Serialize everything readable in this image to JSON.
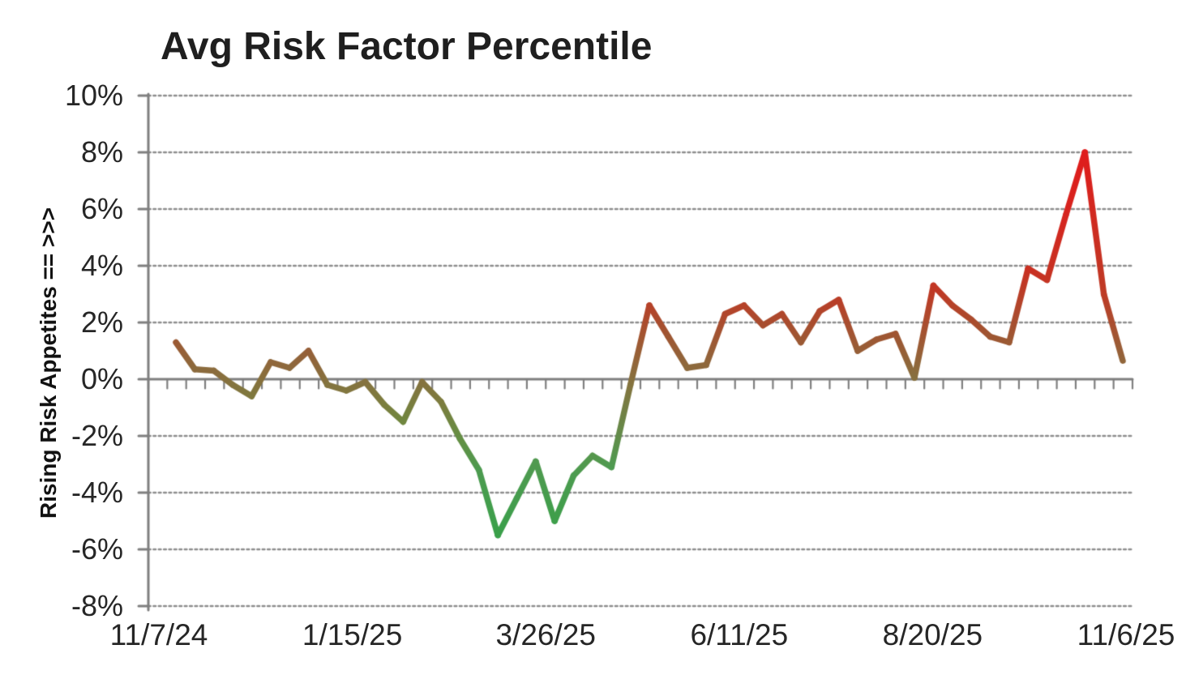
{
  "chart_data": {
    "type": "line",
    "title": "Avg Risk Factor Percentile",
    "y_axis_label": "Rising Risk Appetites == >>>",
    "x_tick_labels": [
      "11/7/24",
      "1/15/25",
      "3/26/25",
      "6/11/25",
      "8/20/25",
      "11/6/25"
    ],
    "y_tick_labels": [
      "10%",
      "8%",
      "6%",
      "4%",
      "2%",
      "0%",
      "-2%",
      "-4%",
      "-6%",
      "-8%"
    ],
    "y_tick_values": [
      10,
      8,
      6,
      4,
      2,
      0,
      -2,
      -4,
      -6,
      -8
    ],
    "ylim": [
      -8,
      10
    ],
    "grid": "horizontal dotted gridlines every 2%, solid gray axis at 0%",
    "legend_position": "none",
    "series": [
      {
        "name": "Avg Risk Factor Percentile",
        "values": [
          1.3,
          0.35,
          0.3,
          -0.2,
          -0.6,
          0.6,
          0.4,
          1.0,
          -0.2,
          -0.4,
          -0.1,
          -0.9,
          -1.5,
          -0.1,
          -0.8,
          -2.1,
          -3.2,
          -5.5,
          -4.2,
          -2.9,
          -5.0,
          -3.4,
          -2.7,
          -3.1,
          -0.2,
          2.6,
          1.5,
          0.4,
          0.5,
          2.3,
          2.6,
          1.9,
          2.3,
          1.3,
          2.4,
          2.8,
          1.0,
          1.4,
          1.6,
          0.05,
          3.3,
          2.6,
          2.1,
          1.5,
          1.3,
          3.9,
          3.5,
          5.8,
          8.0,
          3.0,
          0.65
        ]
      }
    ],
    "line_color_by_value_stops": [
      [
        -5.5,
        "#3aa04a"
      ],
      [
        -3.0,
        "#4f9b51"
      ],
      [
        -1.8,
        "#6b8b40"
      ],
      [
        -0.8,
        "#7d7c3e"
      ],
      [
        0.0,
        "#86713f"
      ],
      [
        0.8,
        "#93633a"
      ],
      [
        1.6,
        "#a05431"
      ],
      [
        2.4,
        "#b2452b"
      ],
      [
        3.2,
        "#c23724"
      ],
      [
        4.5,
        "#d02a20"
      ],
      [
        8.0,
        "#e01c1c"
      ]
    ],
    "axis_color": "#7f7f7f",
    "grid_color": "#8e8e8e",
    "text_color": "#262626"
  }
}
